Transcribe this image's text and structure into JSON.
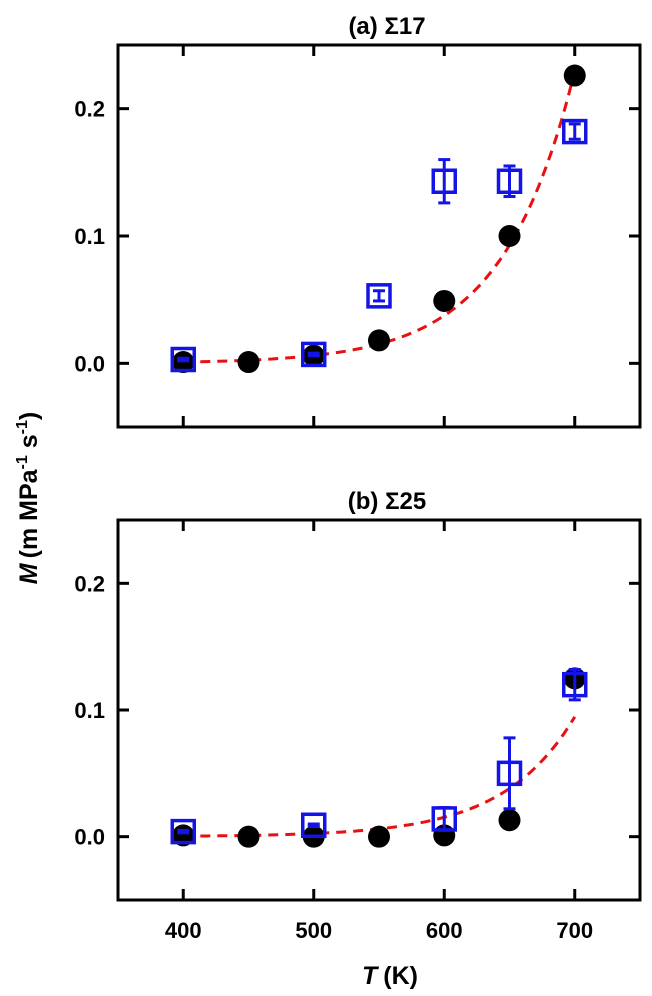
{
  "chart_data": [
    {
      "type": "scatter",
      "title": "(a) Σ17",
      "xlim": [
        350,
        750
      ],
      "ylim": [
        -0.05,
        0.25
      ],
      "xticks": [
        400,
        500,
        600,
        700
      ],
      "yticks": [
        0.0,
        0.1,
        0.2
      ],
      "ytick_labels": [
        "0.0",
        "0.1",
        "0.2"
      ],
      "series": [
        {
          "name": "filled-circles",
          "marker": "circle",
          "color": "#000000",
          "x": [
            400,
            450,
            500,
            550,
            600,
            650,
            700
          ],
          "y": [
            0.001,
            0.001,
            0.006,
            0.018,
            0.049,
            0.1,
            0.226
          ]
        },
        {
          "name": "open-squares",
          "marker": "square",
          "color": "#1414e6",
          "x": [
            400,
            500,
            550,
            600,
            650,
            700
          ],
          "y": [
            0.003,
            0.007,
            0.053,
            0.143,
            0.143,
            0.182
          ],
          "err": [
            0.001,
            0.001,
            0.004,
            0.017,
            0.012,
            0.006
          ]
        },
        {
          "name": "fit",
          "line": "dashed",
          "color": "#e81010",
          "x": [
            400,
            700
          ],
          "amplitude": 0.001,
          "rate": 0.01812
        }
      ]
    },
    {
      "type": "scatter",
      "title": "(b) Σ25",
      "xlim": [
        350,
        750
      ],
      "ylim": [
        -0.05,
        0.25
      ],
      "xticks": [
        400,
        500,
        600,
        700
      ],
      "yticks": [
        0.0,
        0.1,
        0.2
      ],
      "ytick_labels": [
        "0.0",
        "0.1",
        "0.2"
      ],
      "series": [
        {
          "name": "filled-circles",
          "marker": "circle",
          "color": "#000000",
          "x": [
            400,
            450,
            500,
            550,
            600,
            650,
            700
          ],
          "y": [
            0.001,
            0.0,
            0.0,
            0.0,
            0.001,
            0.013,
            0.125
          ]
        },
        {
          "name": "open-squares",
          "marker": "square",
          "color": "#1414e6",
          "x": [
            400,
            500,
            600,
            650,
            700
          ],
          "y": [
            0.004,
            0.009,
            0.014,
            0.05,
            0.12
          ],
          "err": [
            0.001,
            0.001,
            0.009,
            0.028,
            0.012
          ]
        },
        {
          "name": "fit",
          "line": "dashed",
          "color": "#e81010",
          "x": [
            400,
            700
          ],
          "amplitude": 0.0004,
          "rate": 0.01822
        }
      ]
    }
  ],
  "xlabel": {
    "symbol": "T",
    "unit": "(K)"
  },
  "ylabel": {
    "symbol": "M",
    "unit_open": "(m MPa",
    "sup1": "-1",
    "mid": " s",
    "sup2": "-1",
    "close": ")"
  }
}
